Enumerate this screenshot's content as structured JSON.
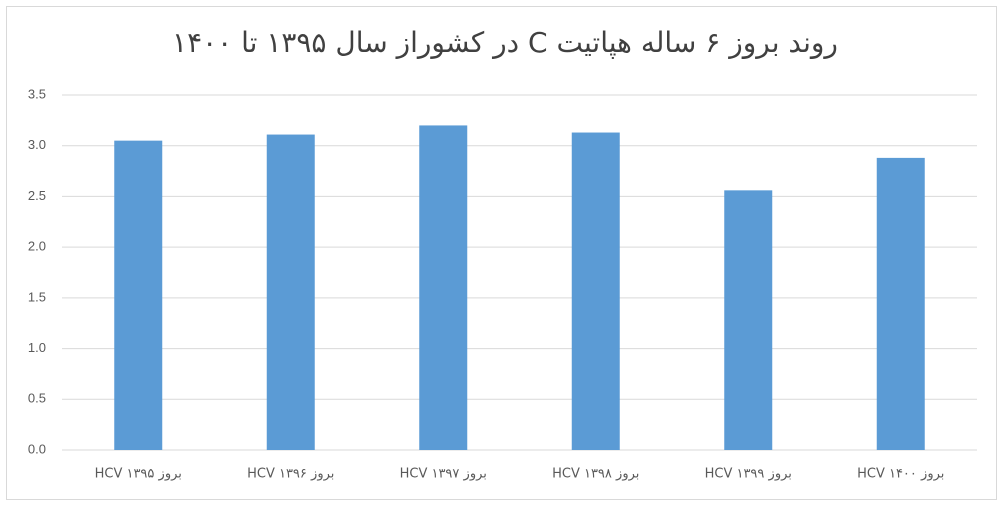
{
  "chart_data": {
    "type": "bar",
    "title": "روند بروز ۶ ساله هپاتیت C در کشوراز سال ۱۳۹۵ تا ۱۴۰۰",
    "categories": [
      "بروز HCV ۱۳۹۵",
      "بروز HCV ۱۳۹۶",
      "بروز HCV ۱۳۹۷",
      "بروز HCV ۱۳۹۸",
      "بروز HCV ۱۳۹۹",
      "بروز HCV ۱۴۰۰"
    ],
    "values": [
      3.05,
      3.11,
      3.2,
      3.13,
      2.56,
      2.88
    ],
    "color": "#5b9bd5",
    "ylim": [
      0,
      3.5
    ],
    "yticks": [
      {
        "value": 0,
        "label": "0.0"
      },
      0.5,
      {
        "value": 1,
        "label": "1.0"
      },
      1.5,
      {
        "value": 2,
        "label": "2.0"
      },
      2.5,
      {
        "value": 3,
        "label": "3.0"
      },
      3.5
    ],
    "grid": true
  }
}
